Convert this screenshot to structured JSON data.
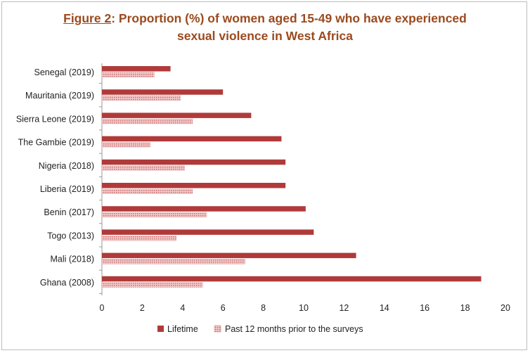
{
  "title": {
    "figure": "Figure 2",
    "rest_line1": ": Proportion (%) of women aged 15-49 who have experienced",
    "line2": "sexual violence in West Africa"
  },
  "colors": {
    "title": "#9b4a1e",
    "lifetime": "#b03a3a",
    "past12": "#e6a5a5"
  },
  "chart_data": {
    "type": "bar",
    "orientation": "horizontal",
    "title": "Figure 2: Proportion (%) of women aged 15-49 who have experienced sexual violence in West Africa",
    "categories": [
      "Senegal (2019)",
      "Mauritania (2019)",
      "Sierra Leone (2019)",
      "The Gambie (2019)",
      "Nigeria (2018)",
      "Liberia (2019)",
      "Benin (2017)",
      "Togo (2013)",
      "Mali (2018)",
      "Ghana (2008)"
    ],
    "series": [
      {
        "name": "Lifetime",
        "values": [
          3.4,
          6.0,
          7.4,
          8.9,
          9.1,
          9.1,
          10.1,
          10.5,
          12.6,
          18.8
        ]
      },
      {
        "name": "Past 12 months prior to the surveys",
        "values": [
          2.6,
          3.9,
          4.5,
          2.4,
          4.1,
          4.5,
          5.2,
          3.7,
          7.1,
          5.0
        ]
      }
    ],
    "xlim": [
      0,
      20
    ],
    "xticks": [
      0,
      2,
      4,
      6,
      8,
      10,
      12,
      14,
      16,
      18,
      20
    ],
    "xlabel": "",
    "ylabel": "",
    "grid": false,
    "legend_position": "bottom"
  }
}
